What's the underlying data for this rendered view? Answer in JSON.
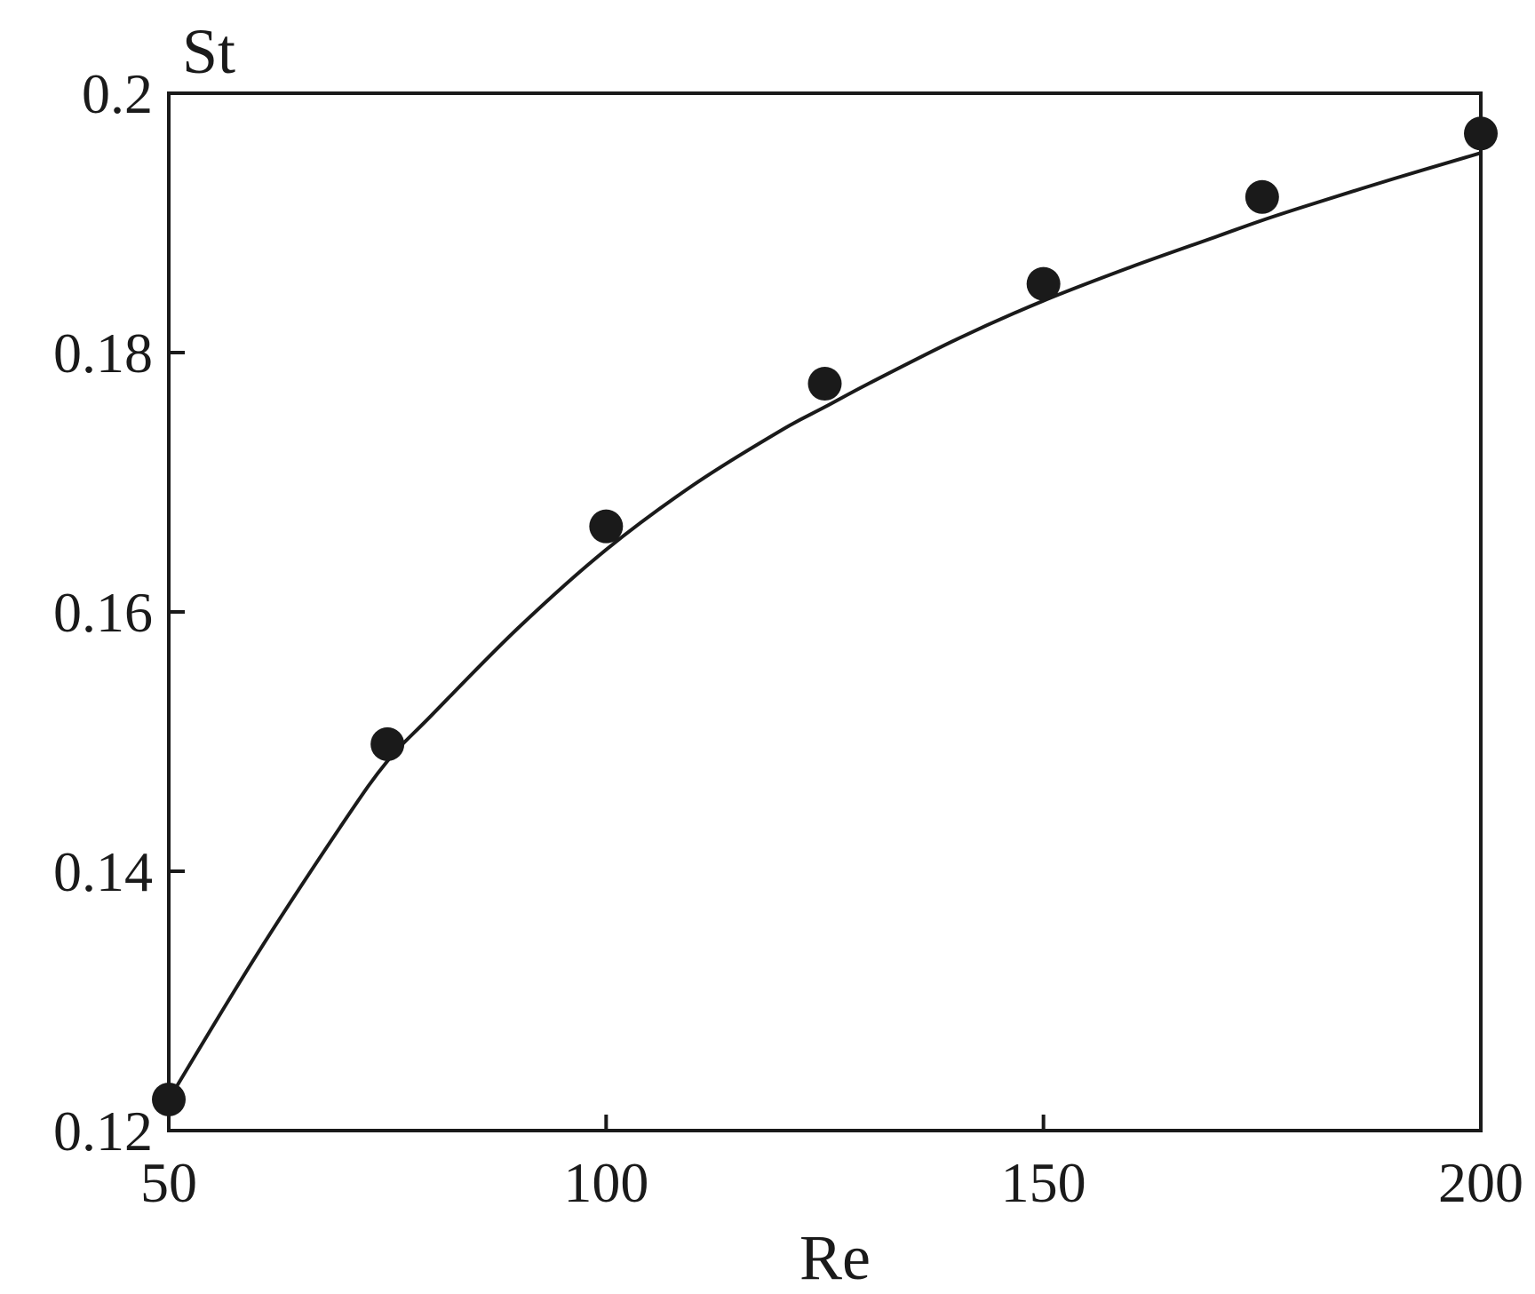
{
  "chart_data": {
    "type": "scatter",
    "xlabel": "Re",
    "ylabel": "St",
    "xlim": [
      50,
      200
    ],
    "ylim": [
      0.12,
      0.2
    ],
    "x_ticks": [
      "50",
      "100",
      "150",
      "200"
    ],
    "y_ticks": [
      "0.12",
      "0.14",
      "0.16",
      "0.18",
      "0.2"
    ],
    "grid": false,
    "legend": "none",
    "series": [
      {
        "kind": "markers",
        "x": [
          50,
          75,
          100,
          125,
          150,
          175,
          200
        ],
        "y": [
          0.1224,
          0.1498,
          0.1666,
          0.1776,
          0.1853,
          0.192,
          0.1969
        ]
      },
      {
        "kind": "fit-line",
        "x": [
          50,
          60,
          70,
          75,
          80,
          90,
          100,
          110,
          120,
          125,
          130,
          140,
          150,
          160,
          170,
          175,
          180,
          190,
          200
        ],
        "y": [
          0.1224,
          0.1335,
          0.1438,
          0.1485,
          0.152,
          0.1588,
          0.1648,
          0.1698,
          0.174,
          0.1758,
          0.1776,
          0.181,
          0.184,
          0.1866,
          0.189,
          0.1902,
          0.1913,
          0.1934,
          0.1954
        ]
      }
    ],
    "colors": {
      "ink": "#1a1a1a",
      "background": "#ffffff"
    }
  }
}
